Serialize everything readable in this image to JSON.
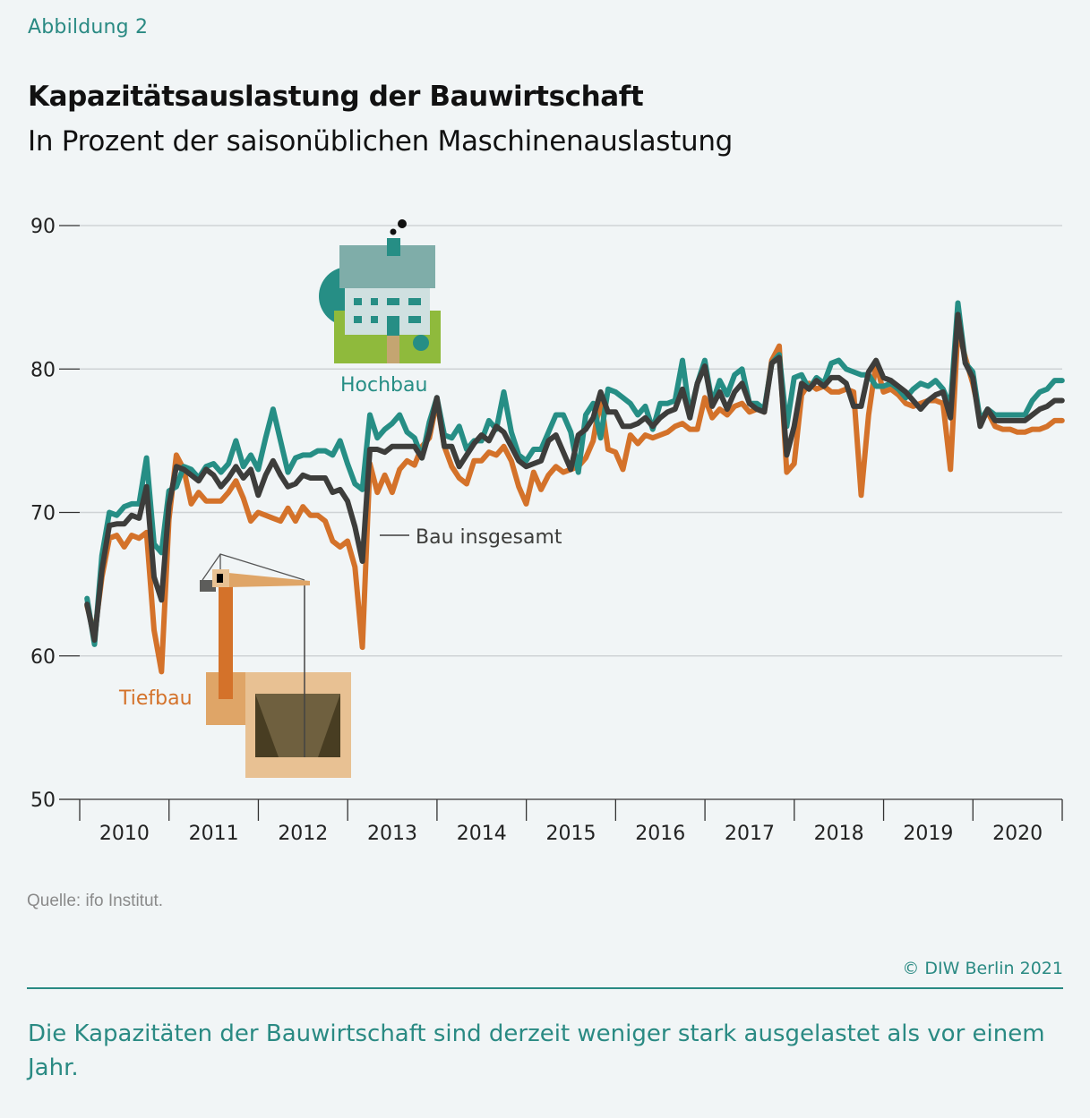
{
  "figure_label": "Abbildung 2",
  "title": "Kapazitätsauslastung der Bauwirtschaft",
  "subtitle": "In Prozent der saisonüblichen Maschinenauslastung",
  "source": "Quelle: ifo Institut.",
  "copyright": "© DIW Berlin 2021",
  "caption": "Die Kapazitäten der Bauwirtschaft sind derzeit weniger stark ausgelastet als vor einem Jahr.",
  "icons": {
    "hochbau": "house-icon",
    "tiefbau": "crane-excavation-icon"
  },
  "colors": {
    "hochbau": "#268e85",
    "tiefbau": "#d4722a",
    "bau_insgesamt": "#3d3d3b",
    "grid": "#cfd3d5",
    "accent": "#2a8a83"
  },
  "chart_data": {
    "type": "line",
    "title": "Kapazitätsauslastung der Bauwirtschaft",
    "subtitle": "In Prozent der saisonüblichen Maschinenauslastung",
    "xlabel": "",
    "ylabel": "",
    "frequency": "monthly",
    "x_start": "2010-01",
    "x_end": "2020-12",
    "x_ticks": [
      "2010",
      "2011",
      "2012",
      "2013",
      "2014",
      "2015",
      "2016",
      "2017",
      "2018",
      "2019",
      "2020"
    ],
    "y_ticks": [
      50,
      60,
      70,
      80,
      90
    ],
    "ylim": [
      50,
      90
    ],
    "grid": true,
    "legend": "inline labels",
    "series": [
      {
        "name": "Hochbau",
        "color": "#268e85",
        "values": [
          64.0,
          60.8,
          67.0,
          70.0,
          69.8,
          70.4,
          70.6,
          70.6,
          73.8,
          67.8,
          67.2,
          71.5,
          71.8,
          73.2,
          73.0,
          72.4,
          73.2,
          73.4,
          72.8,
          73.4,
          75.0,
          73.2,
          74.0,
          73.0,
          75.2,
          77.2,
          75.0,
          72.8,
          73.8,
          74.0,
          74.0,
          74.3,
          74.3,
          74.0,
          75.0,
          73.4,
          72.0,
          71.6,
          76.8,
          75.2,
          75.8,
          76.2,
          76.8,
          75.6,
          75.2,
          73.8,
          76.3,
          78.0,
          75.4,
          75.2,
          76.0,
          74.4,
          75.0,
          75.0,
          76.4,
          75.8,
          78.4,
          75.6,
          74.0,
          73.6,
          74.4,
          74.4,
          75.6,
          76.8,
          76.8,
          75.6,
          72.8,
          76.8,
          77.6,
          75.2,
          78.6,
          78.4,
          78.0,
          77.6,
          76.8,
          77.4,
          75.8,
          77.6,
          77.6,
          77.8,
          80.6,
          76.8,
          79.0,
          80.6,
          77.6,
          79.2,
          78.2,
          79.6,
          80.0,
          77.6,
          77.6,
          77.2,
          80.4,
          81.0,
          76.0,
          79.4,
          79.6,
          78.6,
          79.4,
          79.0,
          80.4,
          80.6,
          80.0,
          79.8,
          79.6,
          79.6,
          78.8,
          78.8,
          79.0,
          78.6,
          78.0,
          78.6,
          79.0,
          78.8,
          79.2,
          78.6,
          77.4,
          84.6,
          80.4,
          79.8,
          76.4,
          77.2,
          76.8,
          76.8,
          76.8,
          76.8,
          76.8,
          77.8,
          78.4,
          78.6,
          79.2,
          79.2
        ]
      },
      {
        "name": "Tiefbau",
        "color": "#d4722a",
        "values": [
          63.5,
          61.5,
          65.5,
          68.2,
          68.4,
          67.6,
          68.4,
          68.2,
          68.6,
          61.8,
          58.9,
          69.5,
          74.0,
          73.0,
          70.6,
          71.4,
          70.8,
          70.8,
          70.8,
          71.4,
          72.2,
          71.0,
          69.4,
          70.0,
          69.8,
          69.6,
          69.4,
          70.3,
          69.4,
          70.4,
          69.8,
          69.8,
          69.4,
          68.0,
          67.6,
          68.0,
          66.2,
          60.6,
          73.4,
          71.4,
          72.6,
          71.4,
          73.0,
          73.6,
          73.3,
          74.6,
          75.2,
          77.8,
          74.6,
          73.2,
          72.4,
          72.0,
          73.6,
          73.6,
          74.2,
          74.0,
          74.6,
          73.6,
          71.8,
          70.6,
          72.8,
          71.6,
          72.6,
          73.2,
          72.8,
          73.0,
          73.2,
          73.8,
          75.0,
          78.0,
          74.4,
          74.2,
          73.0,
          75.4,
          74.8,
          75.4,
          75.2,
          75.4,
          75.6,
          76.0,
          76.2,
          75.8,
          75.8,
          78.0,
          76.6,
          77.2,
          76.8,
          77.4,
          77.6,
          77.0,
          77.2,
          77.0,
          80.6,
          81.6,
          72.8,
          73.4,
          78.2,
          79.0,
          78.6,
          78.8,
          78.4,
          78.4,
          78.6,
          78.4,
          71.2,
          76.8,
          80.4,
          78.4,
          78.6,
          78.2,
          77.6,
          77.4,
          77.6,
          77.8,
          77.8,
          77.6,
          73.0,
          82.8,
          80.8,
          79.0,
          76.6,
          77.0,
          76.0,
          75.8,
          75.8,
          75.6,
          75.6,
          75.8,
          75.8,
          76.0,
          76.4,
          76.4
        ]
      },
      {
        "name": "Bau insgesamt",
        "color": "#3d3d3b",
        "values": [
          63.6,
          61.1,
          66.0,
          69.1,
          69.2,
          69.2,
          69.8,
          69.6,
          71.8,
          65.5,
          63.9,
          70.5,
          73.2,
          73.0,
          72.6,
          72.2,
          73.0,
          72.6,
          71.8,
          72.4,
          73.2,
          72.4,
          73.0,
          71.2,
          72.6,
          73.6,
          72.6,
          71.8,
          72.0,
          72.6,
          72.4,
          72.4,
          72.4,
          71.4,
          71.6,
          70.8,
          69.0,
          66.6,
          74.4,
          74.4,
          74.2,
          74.6,
          74.6,
          74.6,
          74.6,
          73.8,
          75.6,
          78.0,
          74.6,
          74.6,
          73.2,
          74.0,
          74.8,
          75.4,
          75.0,
          76.0,
          75.6,
          74.6,
          73.6,
          73.2,
          73.4,
          73.6,
          75.0,
          75.4,
          74.2,
          73.0,
          75.4,
          75.8,
          76.6,
          78.4,
          77.0,
          77.0,
          76.0,
          76.0,
          76.2,
          76.6,
          76.0,
          76.6,
          77.0,
          77.2,
          78.6,
          76.6,
          79.0,
          80.2,
          77.4,
          78.4,
          77.2,
          78.4,
          79.0,
          77.6,
          77.2,
          77.0,
          80.4,
          80.8,
          74.0,
          76.0,
          79.0,
          78.6,
          79.2,
          78.8,
          79.4,
          79.4,
          79.0,
          77.4,
          77.4,
          79.8,
          80.6,
          79.4,
          79.2,
          78.8,
          78.4,
          77.8,
          77.2,
          77.8,
          78.2,
          78.4,
          76.6,
          83.8,
          80.4,
          79.4,
          76.0,
          77.2,
          76.4,
          76.4,
          76.4,
          76.4,
          76.4,
          76.8,
          77.2,
          77.4,
          77.8,
          77.8
        ]
      }
    ],
    "annotations": [
      {
        "text": "Hochbau",
        "series": "Hochbau"
      },
      {
        "text": "Tiefbau",
        "series": "Tiefbau"
      },
      {
        "text": "Bau insgesamt",
        "series": "Bau insgesamt"
      }
    ]
  }
}
